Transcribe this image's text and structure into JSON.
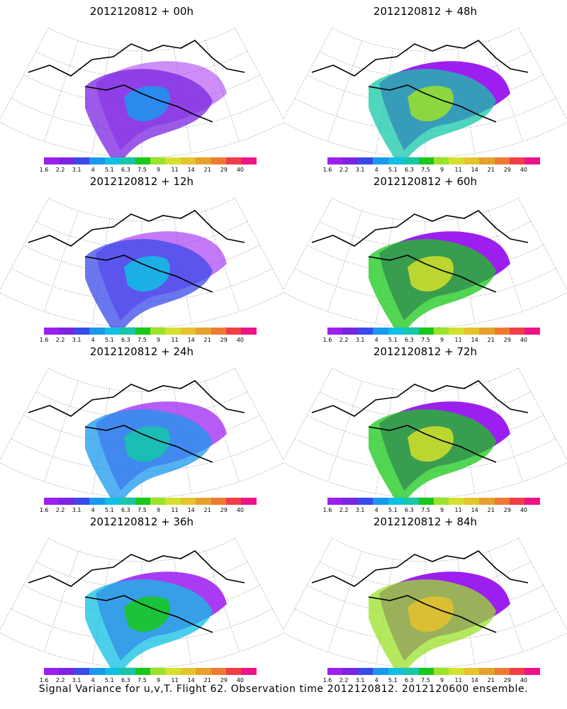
{
  "panels": [
    {
      "title": "2012120812 + 00h",
      "level": 0.05
    },
    {
      "title": "2012120812 + 48h",
      "level": 0.6
    },
    {
      "title": "2012120812 + 12h",
      "level": 0.15
    },
    {
      "title": "2012120812 + 60h",
      "level": 0.75
    },
    {
      "title": "2012120812 + 24h",
      "level": 0.28
    },
    {
      "title": "2012120812 + 72h",
      "level": 0.85
    },
    {
      "title": "2012120812 + 36h",
      "level": 0.42
    },
    {
      "title": "2012120812 + 84h",
      "level": 0.95
    }
  ],
  "legend": {
    "ticks": [
      "1.6",
      "2.2",
      "3.1",
      "4",
      "5.1",
      "6.3",
      "7.5",
      "9",
      "11",
      "14",
      "21",
      "29",
      "40"
    ],
    "colors": [
      "#9c1ff0",
      "#7a24e0",
      "#3a49ea",
      "#1a98ec",
      "#10c0e3",
      "#16c7a8",
      "#18c81a",
      "#9be22a",
      "#d4e02c",
      "#e6c22d",
      "#e6a12d",
      "#ee7a32",
      "#f03e48",
      "#ee1388"
    ]
  },
  "caption": "Signal Variance for u,v,T. Flight 62. Observation time 2012120812. 2012120600 ensemble."
}
